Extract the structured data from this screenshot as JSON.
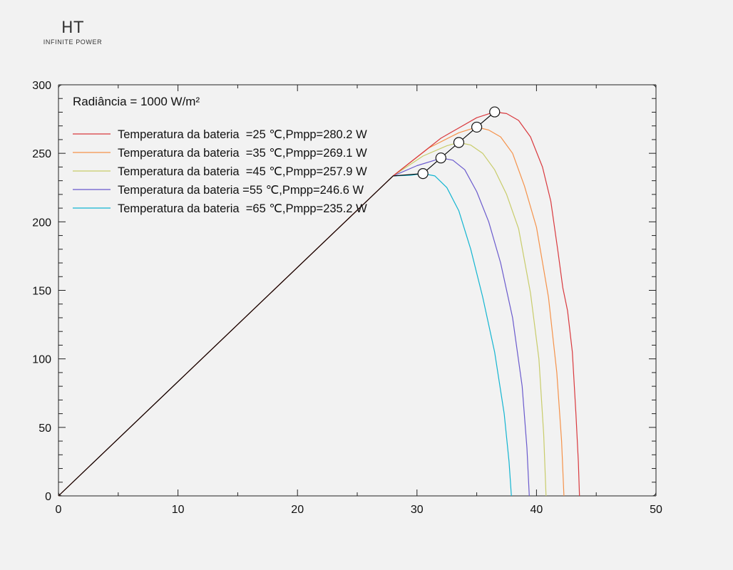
{
  "logo": {
    "mark": "HT",
    "tagline": "INFINITE POWER"
  },
  "chart_data": {
    "type": "line",
    "title": "",
    "xlabel": "",
    "ylabel": "",
    "xlim": [
      0,
      50
    ],
    "ylim": [
      0,
      300
    ],
    "x_ticks": [
      0,
      10,
      20,
      30,
      40,
      50
    ],
    "y_ticks": [
      0,
      50,
      100,
      150,
      200,
      250,
      300
    ],
    "grid": false,
    "legend_position": "top-left",
    "annotation": "Radiância = 1000 W/m²",
    "mpp_locus_color": "#000000",
    "series": [
      {
        "name": "Temperatura da bateria  =25 ℃,Pmpp=280.2 W",
        "color": "#d9393e",
        "mpp": [
          36.5,
          280.2
        ],
        "points": [
          [
            0,
            0
          ],
          [
            28,
            233.5
          ],
          [
            32,
            261
          ],
          [
            35,
            276
          ],
          [
            36.5,
            280.2
          ],
          [
            37.5,
            279
          ],
          [
            38.5,
            274
          ],
          [
            39.5,
            262
          ],
          [
            40.5,
            240
          ],
          [
            41.2,
            215
          ],
          [
            41.8,
            178
          ],
          [
            42.2,
            152
          ],
          [
            42.6,
            135
          ],
          [
            43,
            105
          ],
          [
            43.3,
            60
          ],
          [
            43.5,
            25
          ],
          [
            43.6,
            0
          ]
        ]
      },
      {
        "name": "Temperatura da bateria  =35 ℃,Pmpp=269.1 W",
        "color": "#f5924a",
        "mpp": [
          35,
          269.1
        ],
        "points": [
          [
            0,
            0
          ],
          [
            28,
            233.5
          ],
          [
            31,
            254
          ],
          [
            33.5,
            265
          ],
          [
            35,
            269.1
          ],
          [
            36,
            267
          ],
          [
            37,
            262
          ],
          [
            38,
            250
          ],
          [
            39,
            226
          ],
          [
            40,
            196
          ],
          [
            41,
            145
          ],
          [
            41.7,
            90
          ],
          [
            42.1,
            40
          ],
          [
            42.3,
            0
          ]
        ]
      },
      {
        "name": "Temperatura da bateria  =45 ℃,Pmpp=257.9 W",
        "color": "#c8cc6a",
        "mpp": [
          33.5,
          257.9
        ],
        "points": [
          [
            0,
            0
          ],
          [
            28,
            233.5
          ],
          [
            30.5,
            248
          ],
          [
            32.5,
            255.5
          ],
          [
            33.5,
            257.9
          ],
          [
            34.5,
            256
          ],
          [
            35.5,
            250
          ],
          [
            36.5,
            238
          ],
          [
            37.5,
            220
          ],
          [
            38.5,
            195
          ],
          [
            39.5,
            148
          ],
          [
            40.2,
            100
          ],
          [
            40.6,
            45
          ],
          [
            40.8,
            0
          ]
        ]
      },
      {
        "name": "Temperatura da bateria =55 ℃,Pmpp=246.6 W",
        "color": "#6a5acd",
        "mpp": [
          32,
          246.6
        ],
        "points": [
          [
            0,
            0
          ],
          [
            28,
            233.5
          ],
          [
            30,
            241
          ],
          [
            31.5,
            245
          ],
          [
            32,
            246.6
          ],
          [
            33,
            245
          ],
          [
            34,
            238
          ],
          [
            35,
            222
          ],
          [
            36,
            200
          ],
          [
            37,
            170
          ],
          [
            38,
            130
          ],
          [
            38.8,
            80
          ],
          [
            39.2,
            35
          ],
          [
            39.4,
            0
          ]
        ]
      },
      {
        "name": "Temperatura da bateria  =65 ℃,Pmpp=235.2 W",
        "color": "#13b5d1",
        "mpp": [
          30.5,
          235.2
        ],
        "points": [
          [
            0,
            0
          ],
          [
            28,
            233.5
          ],
          [
            29.5,
            234
          ],
          [
            30.5,
            235.2
          ],
          [
            31.5,
            233.5
          ],
          [
            32.5,
            225
          ],
          [
            33.5,
            208
          ],
          [
            34.5,
            180
          ],
          [
            35.5,
            145
          ],
          [
            36.5,
            105
          ],
          [
            37.3,
            60
          ],
          [
            37.7,
            25
          ],
          [
            37.9,
            0
          ]
        ]
      }
    ]
  }
}
